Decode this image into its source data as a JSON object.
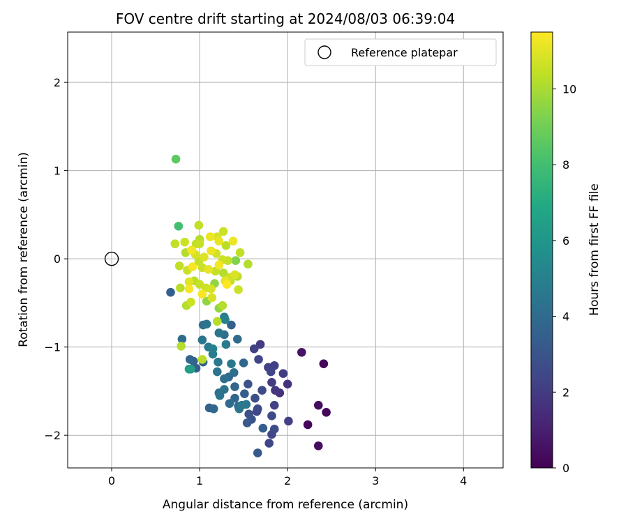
{
  "chart_data": {
    "type": "scatter",
    "title": "FOV centre drift starting at 2024/08/03 06:39:04",
    "xlabel": "Angular distance from reference (arcmin)",
    "ylabel": "Rotation from reference (arcmin)",
    "xlim": [
      -0.5,
      4.45
    ],
    "ylim": [
      -2.37,
      2.57
    ],
    "x_ticks": [
      0,
      1,
      2,
      3,
      4
    ],
    "y_ticks": [
      -2,
      -1,
      0,
      1,
      2
    ],
    "grid": true,
    "legend": {
      "placement": "top-right",
      "entries": [
        "Reference platepar"
      ]
    },
    "reference_point": {
      "name": "Reference platepar",
      "x": 0,
      "y": 0
    },
    "colorbar": {
      "label": "Hours from first FF file",
      "colormap": "viridis",
      "range": [
        0,
        11.5
      ],
      "ticks": [
        0,
        2,
        4,
        6,
        8,
        10
      ]
    },
    "points": [
      [
        0.73,
        1.13,
        8.6
      ],
      [
        0.76,
        0.37,
        8.0
      ],
      [
        0.99,
        0.38,
        10.4
      ],
      [
        0.72,
        0.17,
        10.4
      ],
      [
        0.83,
        0.19,
        10.6
      ],
      [
        0.96,
        0.17,
        10.4
      ],
      [
        1.0,
        0.22,
        10.2
      ],
      [
        1.0,
        0.17,
        10.5
      ],
      [
        1.12,
        0.25,
        11.2
      ],
      [
        1.2,
        0.25,
        10.8
      ],
      [
        1.27,
        0.31,
        10.6
      ],
      [
        1.22,
        0.2,
        11.1
      ],
      [
        1.3,
        0.15,
        10.3
      ],
      [
        1.38,
        0.2,
        11.2
      ],
      [
        1.46,
        0.07,
        10.4
      ],
      [
        0.84,
        0.07,
        10.2
      ],
      [
        0.91,
        0.1,
        11.3
      ],
      [
        0.95,
        0.05,
        10.8
      ],
      [
        1.05,
        0.02,
        10.9
      ],
      [
        1.13,
        0.09,
        11.2
      ],
      [
        1.19,
        0.06,
        10.7
      ],
      [
        1.26,
        -0.01,
        10.6
      ],
      [
        1.32,
        -0.02,
        10.5
      ],
      [
        1.41,
        -0.02,
        9.3
      ],
      [
        1.55,
        -0.06,
        10.2
      ],
      [
        0.77,
        -0.08,
        10.4
      ],
      [
        0.86,
        -0.13,
        10.6
      ],
      [
        0.92,
        -0.09,
        11.4
      ],
      [
        0.99,
        -0.03,
        10.5
      ],
      [
        1.03,
        -0.1,
        10.6
      ],
      [
        1.1,
        -0.12,
        11.1
      ],
      [
        1.18,
        -0.14,
        10.5
      ],
      [
        1.22,
        -0.07,
        11.3
      ],
      [
        1.27,
        -0.16,
        10.2
      ],
      [
        1.34,
        -0.21,
        10.6
      ],
      [
        1.4,
        -0.18,
        10.9
      ],
      [
        1.43,
        -0.2,
        10.3
      ],
      [
        0.78,
        -0.33,
        10.3
      ],
      [
        0.88,
        -0.26,
        11.0
      ],
      [
        0.88,
        -0.34,
        11.4
      ],
      [
        0.94,
        -0.25,
        10.3
      ],
      [
        1.0,
        -0.29,
        10.5
      ],
      [
        1.07,
        -0.33,
        10.6
      ],
      [
        1.13,
        -0.34,
        10.8
      ],
      [
        1.17,
        -0.28,
        9.6
      ],
      [
        1.29,
        -0.25,
        11.1
      ],
      [
        1.31,
        -0.29,
        11.5
      ],
      [
        1.35,
        -0.25,
        10.4
      ],
      [
        1.44,
        -0.35,
        10.6
      ],
      [
        0.9,
        -0.49,
        10.6
      ],
      [
        0.85,
        -0.53,
        10.2
      ],
      [
        1.03,
        -0.4,
        11.4
      ],
      [
        1.08,
        -0.48,
        9.6
      ],
      [
        1.14,
        -0.44,
        10.8
      ],
      [
        1.22,
        -0.56,
        9.6
      ],
      [
        1.26,
        -0.53,
        10.2
      ],
      [
        1.2,
        -0.71,
        10.2
      ],
      [
        1.08,
        -0.74,
        4.4
      ],
      [
        1.04,
        -0.75,
        4.2
      ],
      [
        1.28,
        -0.66,
        4.8
      ],
      [
        1.29,
        -0.69,
        5.0
      ],
      [
        1.36,
        -0.75,
        3.5
      ],
      [
        0.67,
        -0.38,
        3.5
      ],
      [
        0.79,
        -0.99,
        10.2
      ],
      [
        0.8,
        -0.91,
        4.0
      ],
      [
        0.89,
        -1.14,
        3.8
      ],
      [
        0.93,
        -1.16,
        3.6
      ],
      [
        0.96,
        -1.24,
        3.4
      ],
      [
        0.88,
        -1.25,
        6.2
      ],
      [
        0.9,
        -1.25,
        6.4
      ],
      [
        1.03,
        -1.14,
        10.3
      ],
      [
        1.03,
        -0.92,
        4.4
      ],
      [
        1.1,
        -1.0,
        4.6
      ],
      [
        1.15,
        -1.02,
        5.0
      ],
      [
        1.22,
        -0.84,
        4.4
      ],
      [
        1.28,
        -0.86,
        4.2
      ],
      [
        1.3,
        -0.97,
        4.8
      ],
      [
        1.36,
        -1.19,
        4.6
      ],
      [
        1.33,
        -1.34,
        4.0
      ],
      [
        1.28,
        -1.36,
        4.2
      ],
      [
        1.21,
        -1.17,
        4.6
      ],
      [
        1.2,
        -1.28,
        4.4
      ],
      [
        1.15,
        -1.08,
        4.8
      ],
      [
        1.04,
        -1.17,
        3.6
      ],
      [
        1.22,
        -1.52,
        4.2
      ],
      [
        1.23,
        -1.55,
        4.4
      ],
      [
        1.34,
        -1.64,
        4.0
      ],
      [
        1.4,
        -1.58,
        3.8
      ],
      [
        1.44,
        -1.67,
        4.0
      ],
      [
        1.48,
        -1.66,
        4.6
      ],
      [
        1.45,
        -1.7,
        4.4
      ],
      [
        1.53,
        -1.65,
        4.6
      ],
      [
        1.11,
        -1.69,
        3.6
      ],
      [
        1.16,
        -1.7,
        3.8
      ],
      [
        1.5,
        -1.18,
        3.8
      ],
      [
        1.43,
        -0.91,
        4.0
      ],
      [
        1.28,
        -1.48,
        4.4
      ],
      [
        1.39,
        -1.29,
        4.2
      ],
      [
        1.4,
        -1.45,
        3.8
      ],
      [
        1.55,
        -1.42,
        3.0
      ],
      [
        1.51,
        -1.53,
        3.4
      ],
      [
        1.62,
        -1.02,
        2.2
      ],
      [
        1.69,
        -0.97,
        2.0
      ],
      [
        1.67,
        -1.14,
        2.4
      ],
      [
        1.78,
        -1.23,
        2.2
      ],
      [
        1.81,
        -1.28,
        2.4
      ],
      [
        1.85,
        -1.21,
        2.2
      ],
      [
        1.95,
        -1.3,
        2.0
      ],
      [
        2.0,
        -1.42,
        1.6
      ],
      [
        1.82,
        -1.4,
        2.0
      ],
      [
        1.86,
        -1.49,
        1.8
      ],
      [
        1.91,
        -1.52,
        1.6
      ],
      [
        1.71,
        -1.49,
        2.6
      ],
      [
        1.63,
        -1.58,
        2.8
      ],
      [
        1.66,
        -1.7,
        2.6
      ],
      [
        1.65,
        -1.73,
        2.4
      ],
      [
        1.56,
        -1.76,
        2.8
      ],
      [
        1.59,
        -1.82,
        3.0
      ],
      [
        1.54,
        -1.86,
        3.2
      ],
      [
        1.72,
        -1.92,
        3.4
      ],
      [
        1.82,
        -1.78,
        2.6
      ],
      [
        1.85,
        -1.66,
        2.2
      ],
      [
        1.85,
        -1.93,
        2.6
      ],
      [
        1.82,
        -1.99,
        2.4
      ],
      [
        1.79,
        -2.09,
        2.4
      ],
      [
        1.66,
        -2.2,
        3.2
      ],
      [
        2.01,
        -1.84,
        2.2
      ],
      [
        2.16,
        -1.06,
        0.6
      ],
      [
        2.41,
        -1.19,
        0.2
      ],
      [
        2.35,
        -1.66,
        0.4
      ],
      [
        2.44,
        -1.74,
        0.2
      ],
      [
        2.23,
        -1.88,
        0.2
      ],
      [
        2.35,
        -2.12,
        0.4
      ]
    ]
  }
}
